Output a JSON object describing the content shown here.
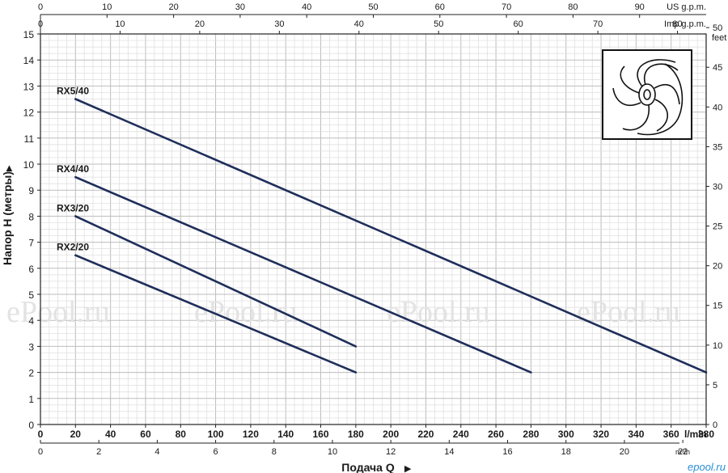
{
  "chart_data": {
    "type": "line",
    "xlabel": "Подача Q",
    "ylabel": "Напор H (метры)",
    "xlim": [
      0,
      380
    ],
    "ylim": [
      0,
      15
    ],
    "x_unit": "l/min",
    "x_ticks": [
      0,
      20,
      40,
      60,
      80,
      100,
      120,
      140,
      160,
      180,
      200,
      220,
      240,
      260,
      280,
      300,
      320,
      340,
      360,
      380
    ],
    "y_ticks": [
      0,
      1,
      2,
      3,
      4,
      5,
      6,
      7,
      8,
      9,
      10,
      11,
      12,
      13,
      14,
      15
    ],
    "grid": true,
    "series": [
      {
        "name": "RX5/40",
        "x": [
          20,
          380
        ],
        "y": [
          12.5,
          2
        ]
      },
      {
        "name": "RX4/40",
        "x": [
          20,
          280
        ],
        "y": [
          9.5,
          2
        ]
      },
      {
        "name": "RX3/20",
        "x": [
          20,
          180
        ],
        "y": [
          8,
          3
        ]
      },
      {
        "name": "RX2/20",
        "x": [
          20,
          180
        ],
        "y": [
          6.5,
          2
        ]
      }
    ],
    "line_color": "#1f2e5a",
    "secondary_axes": {
      "top_us": {
        "label": "US g.p.m.",
        "max": 100,
        "ticks": [
          0,
          10,
          20,
          30,
          40,
          50,
          60,
          70,
          80,
          90
        ]
      },
      "top_imp": {
        "label": "Imp g.p.m.",
        "max": 83.6,
        "ticks": [
          0,
          10,
          20,
          30,
          40,
          50,
          60,
          70,
          80
        ]
      },
      "bottom_m3h": {
        "label": "m³/h",
        "max": 22.8,
        "ticks": [
          0,
          2,
          4,
          6,
          8,
          10,
          12,
          14,
          16,
          18,
          20,
          22
        ]
      },
      "right_feet": {
        "label": "feet",
        "max": 49.2,
        "ticks": [
          0,
          5,
          10,
          15,
          20,
          25,
          30,
          35,
          40,
          45,
          50
        ]
      }
    }
  },
  "watermark": "ePool.ru",
  "logo": "epool.ru"
}
